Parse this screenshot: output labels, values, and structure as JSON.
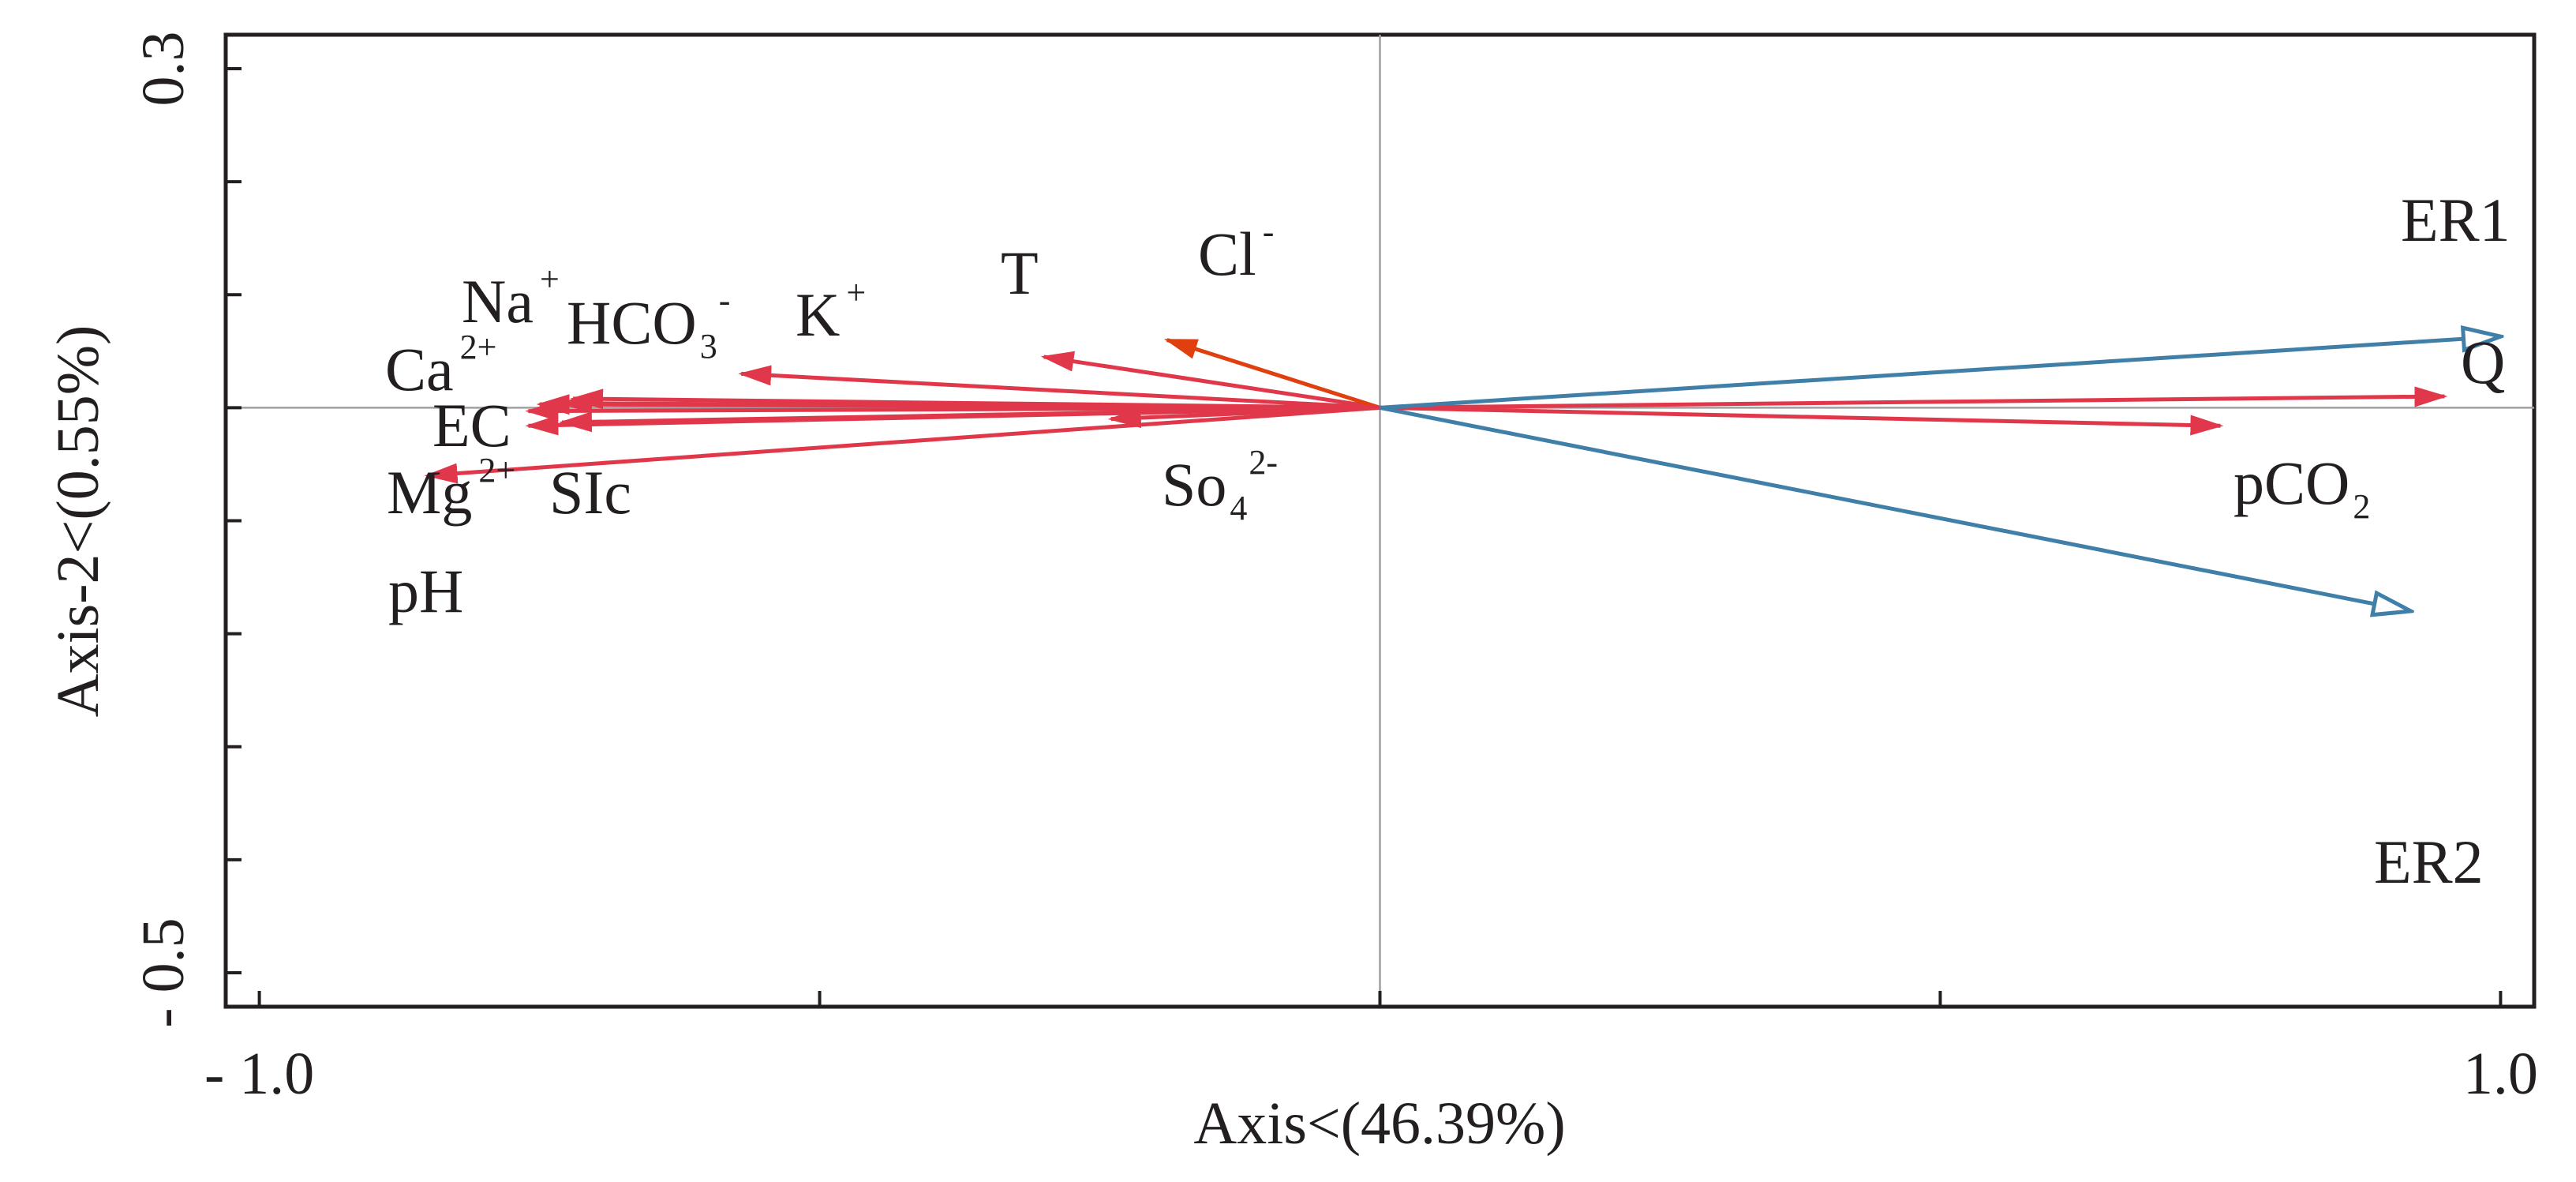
{
  "chart_data": {
    "type": "biplot",
    "xlabel": "Axis<(46.39%)",
    "ylabel": "Axis-2<(0.55%)",
    "xlim": [
      -1.03,
      1.03
    ],
    "ylim": [
      -0.53,
      0.33
    ],
    "x_ticks": [
      -1.0,
      -0.5,
      0,
      0.5,
      1.0
    ],
    "x_tick_labels": [
      {
        "value": -1.0,
        "text": "- 1.0"
      },
      {
        "value": 1.0,
        "text": "1.0"
      }
    ],
    "y_ticks": [
      -0.5,
      -0.4,
      -0.3,
      -0.2,
      -0.1,
      0,
      0.1,
      0.2,
      0.3
    ],
    "y_tick_labels": [
      {
        "value": 0.3,
        "text": "0.3"
      },
      {
        "value": -0.5,
        "text": "- 0.5"
      }
    ],
    "zero_lines": true,
    "colors": {
      "response": "#3f7fa8",
      "explanatory": "#e0384a",
      "explanatory_alt": "#e0400f",
      "axis": "#231f20",
      "zero_line": "#a0a0a0"
    },
    "response_vectors": [
      {
        "name": "ER1",
        "x": 1.0,
        "y": 0.063
      },
      {
        "name": "ER2",
        "x": 0.92,
        "y": -0.18
      }
    ],
    "explanatory_vectors": [
      {
        "name": "Q",
        "x": 0.95,
        "y": 0.01,
        "label": {
          "text": "Q"
        }
      },
      {
        "name": "pCO2",
        "x": 0.75,
        "y": -0.016,
        "label": {
          "text": "pCO",
          "sub": "2"
        }
      },
      {
        "name": "T",
        "x": -0.3,
        "y": 0.045,
        "label": {
          "text": "T"
        }
      },
      {
        "name": "Cl-",
        "x": -0.19,
        "y": 0.06,
        "label": {
          "text": "Cl",
          "sup": "-"
        },
        "color": "explanatory_alt"
      },
      {
        "name": "K+",
        "x": -0.57,
        "y": 0.03,
        "label": {
          "text": "K",
          "sup": "+"
        }
      },
      {
        "name": "HCO3-",
        "x": -0.72,
        "y": 0.008,
        "label": {
          "text": "HCO",
          "sub": "3",
          "sup": "-"
        }
      },
      {
        "name": "Na+",
        "x": -0.73,
        "y": 0.004,
        "label": {
          "text": "Na",
          "sup": "+"
        }
      },
      {
        "name": "Ca2+",
        "x": -0.75,
        "y": 0.003
      },
      {
        "name": "EC",
        "x": -0.76,
        "y": -0.003
      },
      {
        "name": "SIc",
        "x": -0.73,
        "y": -0.013
      },
      {
        "name": "Mg2+",
        "x": -0.76,
        "y": -0.016
      },
      {
        "name": "SO4 2-",
        "x": -0.24,
        "y": -0.01
      },
      {
        "name": "pH",
        "x": -0.85,
        "y": -0.06,
        "label": {
          "text": "pH"
        }
      }
    ],
    "free_labels": [
      {
        "name": "Ca2+",
        "text": "Ca",
        "sup": "2+",
        "x": -0.88,
        "y": 0.01
      },
      {
        "name": "EC",
        "text": "EC",
        "x": -0.86,
        "y": -0.01
      },
      {
        "name": "Mg2+",
        "text": "Mg",
        "sup": "2+",
        "x": -0.9,
        "y": -0.045
      },
      {
        "name": "SIc",
        "text": "SIc",
        "x": -0.74,
        "y": -0.045
      },
      {
        "name": "SO4 2-",
        "text": "So",
        "sub": "4",
        "sup": "2-",
        "x": -0.3,
        "y": -0.04
      }
    ]
  }
}
